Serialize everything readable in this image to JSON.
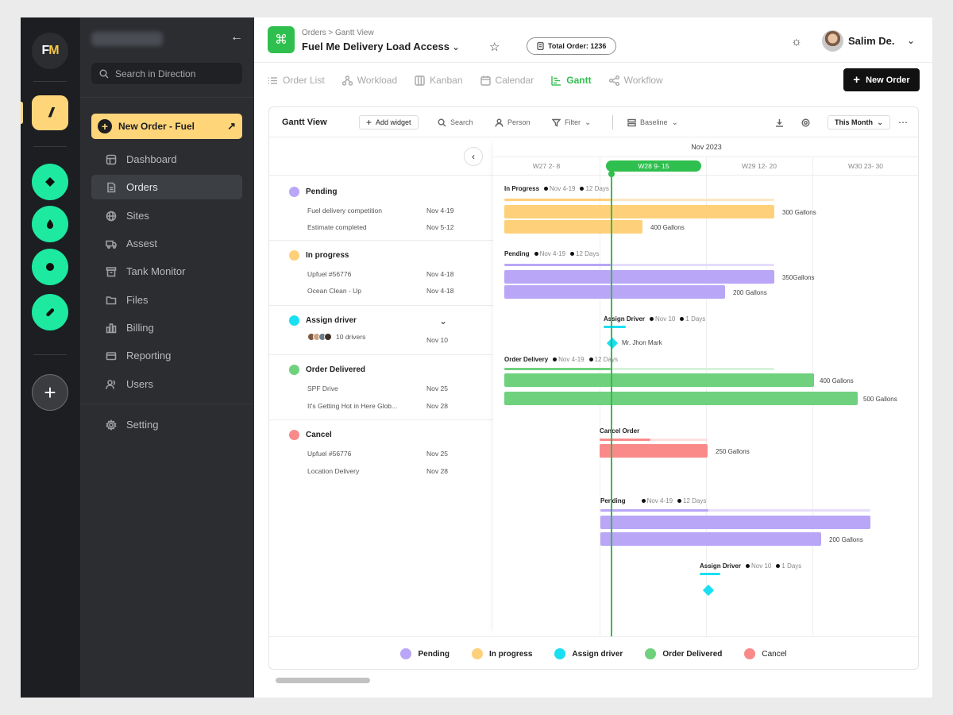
{
  "rail": {
    "logo": "FM",
    "workspace_icons": [
      "diamond-icon",
      "drop-icon",
      "circle-icon",
      "pill-icon"
    ]
  },
  "sidebar": {
    "search_placeholder": "Search in Direction",
    "new_order_label": "New Order - Fuel",
    "items": [
      {
        "label": "Dashboard",
        "icon": "dashboard-icon"
      },
      {
        "label": "Orders",
        "icon": "document-icon",
        "active": true
      },
      {
        "label": "Sites",
        "icon": "globe-icon"
      },
      {
        "label": "Assest",
        "icon": "truck-icon"
      },
      {
        "label": "Tank Monitor",
        "icon": "tank-icon"
      },
      {
        "label": "Files",
        "icon": "folder-icon"
      },
      {
        "label": "Billing",
        "icon": "billing-icon"
      },
      {
        "label": "Reporting",
        "icon": "card-icon"
      },
      {
        "label": "Users",
        "icon": "users-icon"
      }
    ],
    "setting_label": "Setting"
  },
  "header": {
    "breadcrumb": "Orders > Gantt View",
    "title": "Fuel Me Delivery Load Access",
    "total_order": "Total Order: 1236",
    "user_name": "Salim De."
  },
  "tabs": [
    {
      "label": "Order List",
      "icon": "list-icon"
    },
    {
      "label": "Workload",
      "icon": "workload-icon"
    },
    {
      "label": "Kanban",
      "icon": "kanban-icon"
    },
    {
      "label": "Calendar",
      "icon": "calendar-icon"
    },
    {
      "label": "Gantt",
      "icon": "gantt-icon",
      "active": true
    },
    {
      "label": "Workflow",
      "icon": "workflow-icon"
    }
  ],
  "new_order_button": "New Order",
  "toolbar": {
    "view_title": "Gantt View",
    "add_widget": "Add widget",
    "search": "Search",
    "person": "Person",
    "filter": "Filter",
    "baseline": "Baseline",
    "range": "This Month"
  },
  "groups": [
    {
      "title": "Pending",
      "color": "#b9a6f7",
      "rows": [
        {
          "name": "Fuel delivery competition",
          "date": "Nov 4-19"
        },
        {
          "name": "Estimate completed",
          "date": "Nov 5-12"
        }
      ]
    },
    {
      "title": "In progress",
      "color": "#ffd07a",
      "rows": [
        {
          "name": "Upfuel #56776",
          "date": "Nov 4-18"
        },
        {
          "name": "Ocean Clean - Up",
          "date": "Nov 4-18"
        }
      ]
    },
    {
      "title": "Assign driver",
      "color": "#19dff2",
      "rows": [
        {
          "name": "10 drivers",
          "date": "Nov 10"
        }
      ]
    },
    {
      "title": "Order Delivered",
      "color": "#6fd17d",
      "rows": [
        {
          "name": "SPF Drive",
          "date": "Nov 25"
        },
        {
          "name": "It's Getting Hot in Here Glob...",
          "date": "Nov 28"
        }
      ]
    },
    {
      "title": "Cancel",
      "color": "#fa8a8a",
      "rows": [
        {
          "name": "Upfuel #56776",
          "date": "Nov 25"
        },
        {
          "name": "Location Delivery",
          "date": "Nov 28"
        }
      ]
    }
  ],
  "timeline": {
    "month": "Nov 2023",
    "weeks": [
      "W27 2- 8",
      "W28 9- 15",
      "W29 12- 20",
      "W30 23- 30"
    ],
    "current_week": "W28 9- 15"
  },
  "chart_items": {
    "inprogress": {
      "label": "In Progress",
      "date": "Nov 4-19",
      "days": "12 Days",
      "bar1": "300 Gallons",
      "bar2": "400 Gallons"
    },
    "pending": {
      "label": "Pending",
      "date": "Nov 4-19",
      "days": "12 Days",
      "bar1": "350Gallons",
      "bar2": "200 Gallons"
    },
    "assign": {
      "label": "Assign Driver",
      "date": "Nov 10",
      "days": "1 Days",
      "person": "Mr. Jhon Mark"
    },
    "delivery": {
      "label": "Order Delivery",
      "date": "Nov 4-19",
      "days": "12 Days",
      "bar1": "400 Gallons",
      "bar2": "500 Gallons"
    },
    "cancel": {
      "label": "Cancel Order",
      "bar1": "250 Gallons"
    },
    "pending2": {
      "label": "Pending",
      "date": "Nov 4-19",
      "days": "12 Days",
      "bar2": "200 Gallons"
    },
    "assign2": {
      "label": "Assign Driver",
      "date": "Nov 10",
      "days": "1 Days"
    }
  },
  "legend": [
    {
      "label": "Pending",
      "color": "#b9a6f7"
    },
    {
      "label": "In progress",
      "color": "#ffd07a"
    },
    {
      "label": "Assign driver",
      "color": "#19dff2"
    },
    {
      "label": "Order Delivered",
      "color": "#6fd17d"
    },
    {
      "label": "Cancel",
      "color": "#fa8a8a"
    }
  ]
}
